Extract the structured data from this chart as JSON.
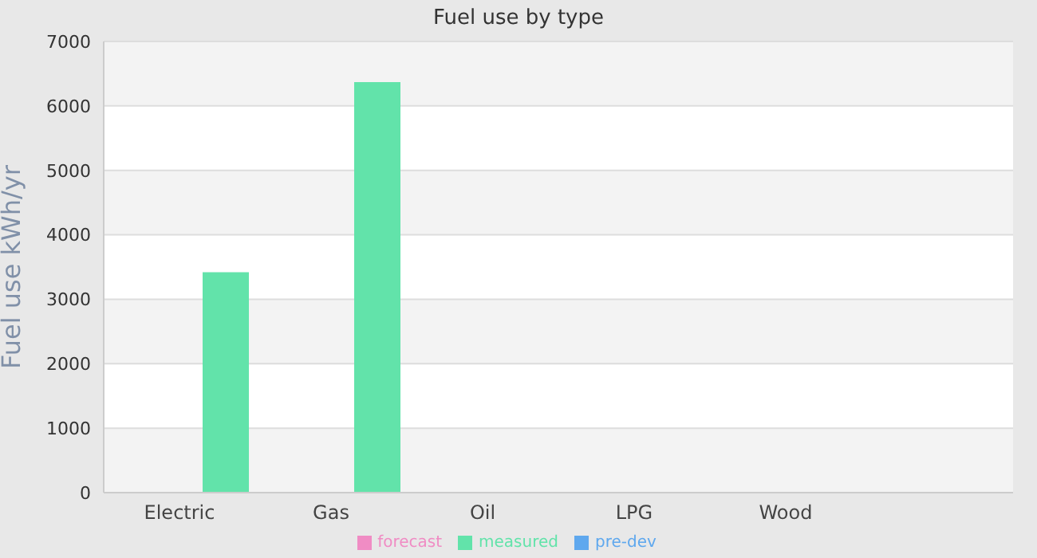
{
  "chart_data": {
    "type": "bar",
    "title": "Fuel use by type",
    "ylabel": "Fuel use  kWh/yr",
    "categories": [
      "Electric",
      "Gas",
      "Oil",
      "LPG",
      "Wood",
      null
    ],
    "series": [
      {
        "name": "pre-dev",
        "color": "#5fa8ee",
        "values": [
          null,
          null,
          null,
          null,
          null,
          null
        ]
      },
      {
        "name": "forecast",
        "color": "#f08cc4",
        "values": [
          null,
          null,
          null,
          null,
          null,
          null
        ]
      },
      {
        "name": "measured",
        "color": "#62e3aa",
        "values": [
          3420,
          6370,
          null,
          null,
          null,
          null
        ]
      }
    ],
    "ylim": [
      0,
      7000
    ],
    "yticks": [
      0,
      1000,
      2000,
      3000,
      4000,
      5000,
      6000,
      7000
    ],
    "grid": "y",
    "legend": "bottom"
  }
}
